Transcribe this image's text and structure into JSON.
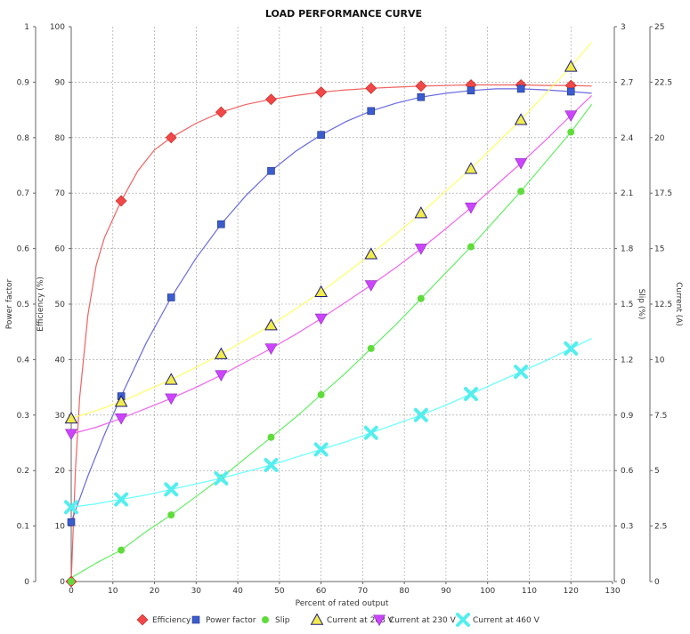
{
  "chart_data": {
    "type": "line",
    "title": "LOAD PERFORMANCE CURVE",
    "xlabel": "Percent of rated output",
    "xlim": [
      0,
      130
    ],
    "x_ticks": [
      0,
      10,
      20,
      30,
      40,
      50,
      60,
      70,
      80,
      90,
      100,
      110,
      120,
      130
    ],
    "grid": true,
    "legend_position": "bottom",
    "axes": [
      {
        "id": "pf",
        "label": "Power factor",
        "range": [
          0,
          1
        ],
        "ticks": [
          "0",
          "0.1",
          "0.2",
          "0.3",
          "0.4",
          "0.5",
          "0.6",
          "0.7",
          "0.8",
          "0.9",
          "1"
        ]
      },
      {
        "id": "eff",
        "label": "Efficiency (%)",
        "range": [
          0,
          100
        ],
        "ticks": [
          "0",
          "10",
          "20",
          "30",
          "40",
          "50",
          "60",
          "70",
          "80",
          "90",
          "100"
        ]
      },
      {
        "id": "slip",
        "label": "Slip (%)",
        "range": [
          0,
          3
        ],
        "ticks": [
          "0",
          "0.3",
          "0.6",
          "0.9",
          "1.2",
          "1.5",
          "1.8",
          "2.1",
          "2.4",
          "2.7",
          "3"
        ]
      },
      {
        "id": "cur",
        "label": "Current (A)",
        "range": [
          0,
          25
        ],
        "ticks": [
          "0",
          "2.5",
          "5",
          "7.5",
          "10",
          "12.5",
          "15",
          "17.5",
          "20",
          "22.5",
          "25"
        ]
      }
    ],
    "series": [
      {
        "name": "Efficiency",
        "axis": "eff",
        "color": "#f04848",
        "line_color": "#f06262",
        "marker": "diamond",
        "points": [
          [
            0,
            0
          ],
          [
            12,
            68.6
          ],
          [
            24,
            80
          ],
          [
            36,
            84.6
          ],
          [
            48,
            86.9
          ],
          [
            60,
            88.2
          ],
          [
            72,
            88.9
          ],
          [
            84,
            89.3
          ],
          [
            96,
            89.5
          ],
          [
            108,
            89.5
          ],
          [
            120,
            89.4
          ]
        ],
        "curve": [
          [
            0,
            0
          ],
          [
            1,
            20
          ],
          [
            2,
            33
          ],
          [
            4,
            48
          ],
          [
            6,
            57
          ],
          [
            8,
            62
          ],
          [
            12,
            68.6
          ],
          [
            16,
            74
          ],
          [
            20,
            77.8
          ],
          [
            24,
            80
          ],
          [
            30,
            82.6
          ],
          [
            36,
            84.6
          ],
          [
            42,
            86
          ],
          [
            48,
            86.9
          ],
          [
            54,
            87.6
          ],
          [
            60,
            88.2
          ],
          [
            66,
            88.6
          ],
          [
            72,
            88.9
          ],
          [
            78,
            89.1
          ],
          [
            84,
            89.3
          ],
          [
            90,
            89.4
          ],
          [
            96,
            89.5
          ],
          [
            102,
            89.5
          ],
          [
            108,
            89.5
          ],
          [
            114,
            89.4
          ],
          [
            120,
            89.4
          ],
          [
            125,
            89.3
          ]
        ]
      },
      {
        "name": "Power factor",
        "axis": "pf",
        "color": "#3b5ccc",
        "line_color": "#6a6ae0",
        "marker": "square",
        "points": [
          [
            0,
            0.107
          ],
          [
            12,
            0.334
          ],
          [
            24,
            0.512
          ],
          [
            36,
            0.644
          ],
          [
            48,
            0.74
          ],
          [
            60,
            0.805
          ],
          [
            72,
            0.848
          ],
          [
            84,
            0.873
          ],
          [
            96,
            0.885
          ],
          [
            108,
            0.888
          ],
          [
            120,
            0.883
          ]
        ],
        "curve": [
          [
            0,
            0.107
          ],
          [
            4,
            0.19
          ],
          [
            8,
            0.265
          ],
          [
            12,
            0.334
          ],
          [
            18,
            0.43
          ],
          [
            24,
            0.512
          ],
          [
            30,
            0.583
          ],
          [
            36,
            0.644
          ],
          [
            42,
            0.696
          ],
          [
            48,
            0.74
          ],
          [
            54,
            0.776
          ],
          [
            60,
            0.805
          ],
          [
            66,
            0.829
          ],
          [
            72,
            0.848
          ],
          [
            78,
            0.862
          ],
          [
            84,
            0.873
          ],
          [
            90,
            0.88
          ],
          [
            96,
            0.885
          ],
          [
            102,
            0.888
          ],
          [
            108,
            0.888
          ],
          [
            114,
            0.886
          ],
          [
            120,
            0.883
          ],
          [
            125,
            0.88
          ]
        ]
      },
      {
        "name": "Slip",
        "axis": "slip",
        "color": "#5fdc3a",
        "line_color": "#66ee66",
        "marker": "circle",
        "points": [
          [
            0,
            0
          ],
          [
            12,
            0.17
          ],
          [
            24,
            0.36
          ],
          [
            36,
            0.56
          ],
          [
            48,
            0.78
          ],
          [
            60,
            1.01
          ],
          [
            72,
            1.26
          ],
          [
            84,
            1.53
          ],
          [
            96,
            1.81
          ],
          [
            108,
            2.11
          ],
          [
            120,
            2.43
          ]
        ],
        "curve": [
          [
            0,
            0.02
          ],
          [
            6,
            0.1
          ],
          [
            12,
            0.17
          ],
          [
            18,
            0.27
          ],
          [
            24,
            0.36
          ],
          [
            30,
            0.46
          ],
          [
            36,
            0.56
          ],
          [
            42,
            0.67
          ],
          [
            48,
            0.78
          ],
          [
            54,
            0.89
          ],
          [
            60,
            1.01
          ],
          [
            66,
            1.13
          ],
          [
            72,
            1.26
          ],
          [
            78,
            1.39
          ],
          [
            84,
            1.53
          ],
          [
            90,
            1.67
          ],
          [
            96,
            1.81
          ],
          [
            102,
            1.96
          ],
          [
            108,
            2.11
          ],
          [
            114,
            2.27
          ],
          [
            120,
            2.43
          ],
          [
            125,
            2.58
          ]
        ]
      },
      {
        "name": "Current at 208 V",
        "axis": "cur",
        "color": "#f2ec4a",
        "line_color": "#ffff66",
        "marker": "triangle-up",
        "points": [
          [
            0,
            7.35
          ],
          [
            12,
            8.1
          ],
          [
            24,
            9.1
          ],
          [
            36,
            10.25
          ],
          [
            48,
            11.55
          ],
          [
            60,
            13.05
          ],
          [
            72,
            14.75
          ],
          [
            84,
            16.6
          ],
          [
            96,
            18.6
          ],
          [
            108,
            20.8
          ],
          [
            120,
            23.2
          ]
        ],
        "curve": [
          [
            0,
            7.35
          ],
          [
            6,
            7.7
          ],
          [
            12,
            8.1
          ],
          [
            18,
            8.6
          ],
          [
            24,
            9.1
          ],
          [
            30,
            9.65
          ],
          [
            36,
            10.25
          ],
          [
            42,
            10.9
          ],
          [
            48,
            11.55
          ],
          [
            54,
            12.3
          ],
          [
            60,
            13.05
          ],
          [
            66,
            13.9
          ],
          [
            72,
            14.75
          ],
          [
            78,
            15.65
          ],
          [
            84,
            16.6
          ],
          [
            90,
            17.6
          ],
          [
            96,
            18.6
          ],
          [
            102,
            19.7
          ],
          [
            108,
            20.8
          ],
          [
            114,
            22
          ],
          [
            120,
            23.2
          ],
          [
            125,
            24.3
          ]
        ]
      },
      {
        "name": "Current at 230 V",
        "axis": "cur",
        "color": "#cc44ff",
        "line_color": "#ee66ee",
        "marker": "triangle-down",
        "points": [
          [
            0,
            6.65
          ],
          [
            12,
            7.35
          ],
          [
            24,
            8.25
          ],
          [
            36,
            9.3
          ],
          [
            48,
            10.5
          ],
          [
            60,
            11.85
          ],
          [
            72,
            13.35
          ],
          [
            84,
            15.0
          ],
          [
            96,
            16.85
          ],
          [
            108,
            18.85
          ],
          [
            120,
            21.0
          ]
        ],
        "curve": [
          [
            0,
            6.65
          ],
          [
            6,
            6.95
          ],
          [
            12,
            7.35
          ],
          [
            18,
            7.8
          ],
          [
            24,
            8.25
          ],
          [
            30,
            8.75
          ],
          [
            36,
            9.3
          ],
          [
            42,
            9.9
          ],
          [
            48,
            10.5
          ],
          [
            54,
            11.15
          ],
          [
            60,
            11.85
          ],
          [
            66,
            12.6
          ],
          [
            72,
            13.35
          ],
          [
            78,
            14.15
          ],
          [
            84,
            15.0
          ],
          [
            90,
            15.9
          ],
          [
            96,
            16.85
          ],
          [
            102,
            17.85
          ],
          [
            108,
            18.85
          ],
          [
            114,
            19.9
          ],
          [
            120,
            21.0
          ],
          [
            125,
            21.9
          ]
        ]
      },
      {
        "name": "Current at 460 V",
        "axis": "cur",
        "color": "#55eeee",
        "line_color": "#66ffff",
        "marker": "cross",
        "points": [
          [
            0,
            3.35
          ],
          [
            12,
            3.7
          ],
          [
            24,
            4.15
          ],
          [
            36,
            4.65
          ],
          [
            48,
            5.25
          ],
          [
            60,
            5.95
          ],
          [
            72,
            6.7
          ],
          [
            84,
            7.5
          ],
          [
            96,
            8.45
          ],
          [
            108,
            9.45
          ],
          [
            120,
            10.5
          ]
        ],
        "curve": [
          [
            0,
            3.35
          ],
          [
            6,
            3.5
          ],
          [
            12,
            3.7
          ],
          [
            18,
            3.9
          ],
          [
            24,
            4.15
          ],
          [
            30,
            4.4
          ],
          [
            36,
            4.65
          ],
          [
            42,
            4.95
          ],
          [
            48,
            5.25
          ],
          [
            54,
            5.6
          ],
          [
            60,
            5.95
          ],
          [
            66,
            6.3
          ],
          [
            72,
            6.7
          ],
          [
            78,
            7.1
          ],
          [
            84,
            7.5
          ],
          [
            90,
            7.95
          ],
          [
            96,
            8.45
          ],
          [
            102,
            8.95
          ],
          [
            108,
            9.45
          ],
          [
            114,
            9.95
          ],
          [
            120,
            10.5
          ],
          [
            125,
            10.95
          ]
        ]
      }
    ]
  }
}
